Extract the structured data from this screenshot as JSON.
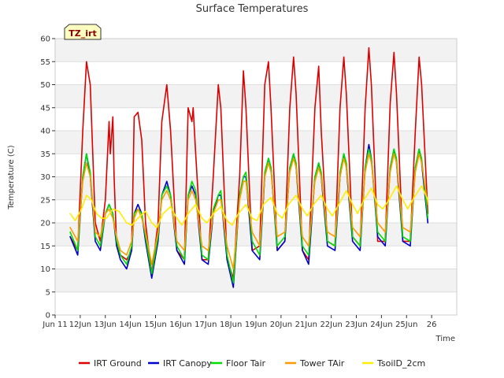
{
  "chart_data": {
    "type": "line",
    "title": "Surface Temperatures",
    "xlabel": "Time",
    "ylabel": "Temperature (C)",
    "tag_label": "TZ_irt",
    "ylim": [
      0,
      60
    ],
    "xlim": [
      0,
      16
    ],
    "yticks": [
      0,
      5,
      10,
      15,
      20,
      25,
      30,
      35,
      40,
      45,
      50,
      55,
      60
    ],
    "xtick_labels": [
      "Jun 11",
      "12Jun",
      "13Jun",
      "14Jun",
      "15Jun",
      "16Jun",
      "17Jun",
      "18Jun",
      "19Jun",
      "20Jun",
      "21Jun",
      "22Jun",
      "23Jun",
      "24Jun",
      "25Jun",
      "26"
    ],
    "grid": true,
    "legend_position": "bottom",
    "series": [
      {
        "name": "IRT Ground",
        "color": "#dd0000",
        "x": [
          0.6,
          0.9,
          1.1,
          1.25,
          1.4,
          1.6,
          1.8,
          2.0,
          2.15,
          2.2,
          2.3,
          2.35,
          2.45,
          2.6,
          2.85,
          3.05,
          3.15,
          3.3,
          3.45,
          3.6,
          3.85,
          4.1,
          4.25,
          4.45,
          4.6,
          4.85,
          5.15,
          5.3,
          5.45,
          5.5,
          5.6,
          5.85,
          6.1,
          6.3,
          6.5,
          6.6,
          6.85,
          7.1,
          7.35,
          7.5,
          7.6,
          7.85,
          8.15,
          8.35,
          8.5,
          8.6,
          8.85,
          9.15,
          9.35,
          9.5,
          9.6,
          9.85,
          10.1,
          10.35,
          10.5,
          10.6,
          10.85,
          11.15,
          11.35,
          11.5,
          11.6,
          11.85,
          12.15,
          12.35,
          12.5,
          12.6,
          12.85,
          13.15,
          13.35,
          13.5,
          13.6,
          13.85,
          14.15,
          14.35,
          14.5,
          14.6,
          14.85
        ],
        "y": [
          17,
          14,
          40,
          55,
          50,
          20,
          16,
          25,
          42,
          35,
          43,
          30,
          15,
          13,
          12,
          14,
          43,
          44,
          38,
          20,
          9,
          20,
          42,
          50,
          40,
          14,
          12,
          45,
          42,
          45,
          35,
          12,
          12,
          30,
          50,
          45,
          12,
          8,
          30,
          53,
          45,
          14,
          15,
          50,
          55,
          45,
          14,
          16,
          45,
          56,
          48,
          14,
          12,
          45,
          54,
          40,
          16,
          15,
          45,
          56,
          48,
          17,
          15,
          45,
          58,
          50,
          16,
          16,
          46,
          57,
          48,
          16,
          16,
          40,
          56,
          50,
          22
        ]
      },
      {
        "name": "IRT Canopy",
        "color": "#0000cc",
        "x": [
          0.6,
          0.9,
          1.1,
          1.25,
          1.4,
          1.6,
          1.8,
          2.0,
          2.15,
          2.3,
          2.45,
          2.6,
          2.85,
          3.05,
          3.15,
          3.3,
          3.45,
          3.6,
          3.85,
          4.1,
          4.25,
          4.45,
          4.6,
          4.85,
          5.15,
          5.3,
          5.45,
          5.6,
          5.85,
          6.1,
          6.3,
          6.5,
          6.6,
          6.85,
          7.1,
          7.35,
          7.5,
          7.6,
          7.85,
          8.15,
          8.35,
          8.5,
          8.6,
          8.85,
          9.15,
          9.35,
          9.5,
          9.6,
          9.85,
          10.1,
          10.35,
          10.5,
          10.6,
          10.85,
          11.15,
          11.35,
          11.5,
          11.6,
          11.85,
          12.15,
          12.35,
          12.5,
          12.6,
          12.85,
          13.15,
          13.35,
          13.5,
          13.6,
          13.85,
          14.15,
          14.35,
          14.5,
          14.6,
          14.85
        ],
        "y": [
          17,
          13,
          30,
          35,
          30,
          16,
          14,
          22,
          24,
          22,
          15,
          12,
          10,
          14,
          22,
          24,
          22,
          16,
          8,
          16,
          26,
          29,
          26,
          14,
          11,
          26,
          28,
          26,
          12,
          11,
          22,
          26,
          26,
          12,
          6,
          26,
          30,
          30,
          14,
          12,
          30,
          34,
          32,
          14,
          16,
          32,
          35,
          32,
          14,
          11,
          30,
          33,
          30,
          15,
          14,
          30,
          35,
          32,
          16,
          14,
          32,
          37,
          34,
          17,
          15,
          32,
          36,
          33,
          16,
          15,
          32,
          36,
          33,
          20
        ]
      },
      {
        "name": "Floor Tair",
        "color": "#00dd00",
        "x": [
          0.6,
          0.9,
          1.1,
          1.25,
          1.4,
          1.6,
          1.8,
          2.0,
          2.15,
          2.3,
          2.45,
          2.6,
          2.85,
          3.05,
          3.15,
          3.3,
          3.45,
          3.6,
          3.85,
          4.1,
          4.25,
          4.45,
          4.6,
          4.85,
          5.15,
          5.3,
          5.45,
          5.6,
          5.85,
          6.1,
          6.3,
          6.5,
          6.6,
          6.85,
          7.1,
          7.35,
          7.5,
          7.6,
          7.85,
          8.15,
          8.35,
          8.5,
          8.6,
          8.85,
          9.15,
          9.35,
          9.5,
          9.6,
          9.85,
          10.1,
          10.35,
          10.5,
          10.6,
          10.85,
          11.15,
          11.35,
          11.5,
          11.6,
          11.85,
          12.15,
          12.35,
          12.5,
          12.6,
          12.85,
          13.15,
          13.35,
          13.5,
          13.6,
          13.85,
          14.15,
          14.35,
          14.5,
          14.6,
          14.85
        ],
        "y": [
          18,
          14,
          30,
          35,
          31,
          17,
          15,
          22,
          24,
          22,
          16,
          13,
          11,
          15,
          22,
          23,
          22,
          17,
          9,
          17,
          26,
          28,
          26,
          15,
          12,
          26,
          29,
          27,
          13,
          12,
          23,
          26,
          27,
          13,
          7,
          26,
          30,
          31,
          16,
          13,
          31,
          34,
          32,
          15,
          17,
          32,
          35,
          33,
          15,
          13,
          30,
          33,
          31,
          16,
          15,
          31,
          35,
          33,
          17,
          15,
          32,
          36,
          34,
          18,
          16,
          32,
          36,
          34,
          17,
          16,
          32,
          36,
          34,
          21
        ]
      },
      {
        "name": "Tower TAir",
        "color": "#ff9900",
        "x": [
          0.6,
          0.9,
          1.1,
          1.25,
          1.4,
          1.6,
          1.8,
          2.0,
          2.15,
          2.3,
          2.45,
          2.6,
          2.85,
          3.05,
          3.15,
          3.3,
          3.45,
          3.6,
          3.85,
          4.1,
          4.25,
          4.45,
          4.6,
          4.85,
          5.15,
          5.3,
          5.45,
          5.6,
          5.85,
          6.1,
          6.3,
          6.5,
          6.6,
          6.85,
          7.1,
          7.35,
          7.5,
          7.6,
          7.85,
          8.15,
          8.35,
          8.5,
          8.6,
          8.85,
          9.15,
          9.35,
          9.5,
          9.6,
          9.85,
          10.1,
          10.35,
          10.5,
          10.6,
          10.85,
          11.15,
          11.35,
          11.5,
          11.6,
          11.85,
          12.15,
          12.35,
          12.5,
          12.6,
          12.85,
          13.15,
          13.35,
          13.5,
          13.6,
          13.85,
          14.15,
          14.35,
          14.5,
          14.6,
          14.85
        ],
        "y": [
          19,
          16,
          29,
          33,
          30,
          18,
          17,
          22,
          23,
          21,
          17,
          14,
          13,
          16,
          21,
          23,
          21,
          18,
          11,
          18,
          25,
          27,
          25,
          16,
          14,
          25,
          27,
          25,
          15,
          14,
          22,
          25,
          25,
          15,
          10,
          25,
          29,
          29,
          18,
          15,
          30,
          33,
          31,
          17,
          18,
          31,
          34,
          32,
          17,
          15,
          29,
          32,
          30,
          18,
          17,
          30,
          34,
          32,
          19,
          17,
          31,
          35,
          33,
          20,
          18,
          31,
          35,
          33,
          19,
          18,
          31,
          35,
          33,
          24
        ]
      },
      {
        "name": "TsoilD_2cm",
        "color": "#ffee00",
        "x": [
          0.6,
          0.8,
          1.05,
          1.25,
          1.45,
          1.65,
          1.85,
          2.05,
          2.3,
          2.55,
          2.85,
          3.05,
          3.3,
          3.6,
          3.85,
          4.05,
          4.3,
          4.6,
          4.85,
          5.05,
          5.3,
          5.6,
          5.85,
          6.05,
          6.3,
          6.6,
          6.85,
          7.05,
          7.3,
          7.6,
          7.85,
          8.05,
          8.3,
          8.6,
          8.85,
          9.05,
          9.3,
          9.6,
          9.85,
          10.05,
          10.3,
          10.6,
          10.85,
          11.05,
          11.3,
          11.6,
          11.85,
          12.05,
          12.3,
          12.6,
          12.85,
          13.05,
          13.3,
          13.6,
          13.85,
          14.05,
          14.3,
          14.6,
          14.85
        ],
        "y": [
          22,
          20.5,
          23,
          26,
          25,
          22,
          21,
          21,
          23,
          22.5,
          20,
          19.5,
          21,
          22.5,
          20,
          19,
          22,
          23.5,
          21,
          19.5,
          22,
          24,
          21,
          20,
          22,
          23.5,
          20.5,
          19.5,
          22,
          24,
          21,
          20.5,
          24,
          25.5,
          22,
          21,
          24,
          26,
          23,
          21.5,
          24,
          26,
          23,
          21.5,
          24,
          27,
          24,
          22,
          25,
          27.5,
          24,
          23,
          25,
          28,
          25,
          23,
          25.5,
          28,
          25
        ]
      }
    ]
  }
}
